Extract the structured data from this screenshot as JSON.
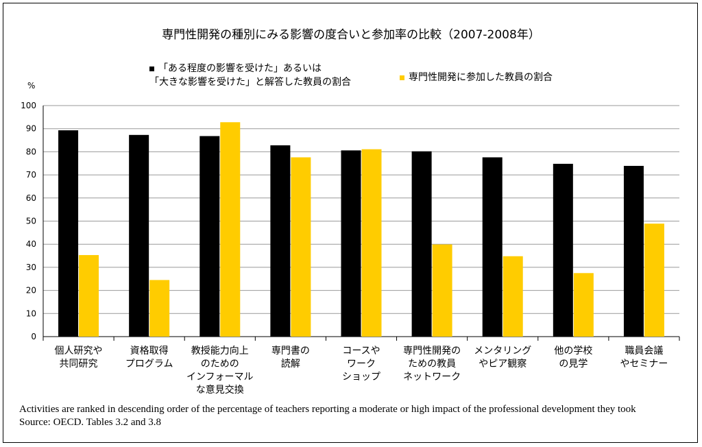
{
  "chart_data": {
    "type": "bar",
    "title": "専門性開発の種別にみる影響の度合いと参加率の比較（2007-2008年）",
    "ylabel": "%",
    "ylim": [
      0,
      100
    ],
    "yticks": [
      0,
      10,
      20,
      30,
      40,
      50,
      60,
      70,
      80,
      90,
      100
    ],
    "grid": true,
    "legend_placement": "top",
    "categories": [
      "個人研究や\n共同研究",
      "資格取得\nプログラム",
      "教授能力向上\nのための\nインフォーマル\nな意見交換",
      "専門書の\n読解",
      "コースや\nワーク\nショップ",
      "専門性開発の\nための教員\nネットワーク",
      "メンタリング\nやピア観察",
      "他の学校\nの見学",
      "職員会議\nやセミナー"
    ],
    "series": [
      {
        "name": "「ある程度の影響を受けた」あるいは\n「大きな影響を受けた」と解答した教員の割合",
        "color": "#000000",
        "values": [
          89.3,
          87.3,
          86.8,
          82.8,
          80.6,
          80.2,
          77.6,
          74.8,
          73.9
        ]
      },
      {
        "name": "専門性開発に参加した教員の割合",
        "color": "#FFCC00",
        "values": [
          35.3,
          24.5,
          92.8,
          77.6,
          81.1,
          39.9,
          34.8,
          27.5,
          48.9
        ]
      }
    ]
  },
  "notes": {
    "line1": "Activities are ranked in descending order of the percentage of teachers reporting a moderate or high impact of the professional development they took",
    "line2": "Source: OECD. Tables 3.2 and 3.8"
  }
}
